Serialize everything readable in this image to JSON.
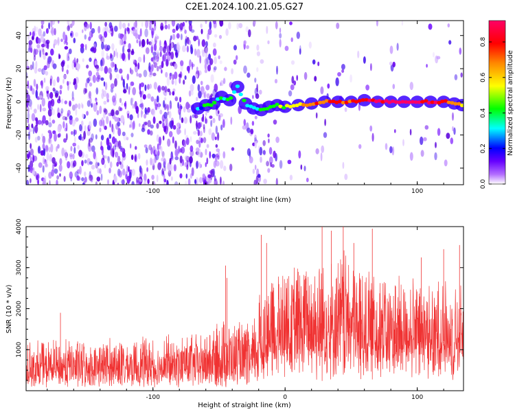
{
  "figure_title": "C2E1.2024.100.21.05.G27",
  "colors": {
    "snr_line": "#f03232",
    "frame": "#000000",
    "colormap": [
      "#ffffff",
      "#8800ff",
      "#0000ff",
      "#00ffff",
      "#00ff00",
      "#ffff00",
      "#ff8800",
      "#ff0000",
      "#ff0066"
    ]
  },
  "chart_data": [
    {
      "type": "heatmap",
      "title": "C2E1.2024.100.21.05.G27",
      "xlabel": "Height of straight line (km)",
      "ylabel": "Frequency (Hz)",
      "xlim": [
        -196,
        135
      ],
      "ylim": [
        -50,
        49
      ],
      "xticks": [
        -100,
        0,
        100
      ],
      "xtick_labels": [
        "-100",
        "",
        "100"
      ],
      "yticks": [
        -40,
        -20,
        0,
        20,
        40
      ],
      "ytick_labels": [
        "-40",
        "-20",
        "0",
        "20",
        "40"
      ],
      "colorbar": {
        "label": "Normalized spectral amplitude",
        "range": [
          0,
          0.92
        ],
        "ticks": [
          0.0,
          0.2,
          0.4,
          0.6,
          0.8
        ],
        "tick_labels": [
          "0.0",
          "0.2",
          "0.4",
          "0.6",
          "0.8"
        ]
      },
      "ridge": [
        {
          "x": -66,
          "freq": -4,
          "amp": 0.3
        },
        {
          "x": -60,
          "freq": -2,
          "amp": 0.34
        },
        {
          "x": -54,
          "freq": -1,
          "amp": 0.38
        },
        {
          "x": -48,
          "freq": 3,
          "amp": 0.4
        },
        {
          "x": -42,
          "freq": 1,
          "amp": 0.36
        },
        {
          "x": -36,
          "freq": 9,
          "amp": 0.32
        },
        {
          "x": -30,
          "freq": -1,
          "amp": 0.35
        },
        {
          "x": -24,
          "freq": -4,
          "amp": 0.33
        },
        {
          "x": -18,
          "freq": -5,
          "amp": 0.38
        },
        {
          "x": -12,
          "freq": -3,
          "amp": 0.4
        },
        {
          "x": -6,
          "freq": -2,
          "amp": 0.44
        },
        {
          "x": 0,
          "freq": -3,
          "amp": 0.55
        },
        {
          "x": 10,
          "freq": -2,
          "amp": 0.62
        },
        {
          "x": 20,
          "freq": -1,
          "amp": 0.68
        },
        {
          "x": 30,
          "freq": 0,
          "amp": 0.72
        },
        {
          "x": 40,
          "freq": 0,
          "amp": 0.74
        },
        {
          "x": 50,
          "freq": 0,
          "amp": 0.75
        },
        {
          "x": 60,
          "freq": 1,
          "amp": 0.8
        },
        {
          "x": 70,
          "freq": 0,
          "amp": 0.86
        },
        {
          "x": 80,
          "freq": 0,
          "amp": 0.9
        },
        {
          "x": 90,
          "freq": 0,
          "amp": 0.88
        },
        {
          "x": 100,
          "freq": 0,
          "amp": 0.86
        },
        {
          "x": 110,
          "freq": 0,
          "amp": 0.84
        },
        {
          "x": 120,
          "freq": 0,
          "amp": 0.82
        },
        {
          "x": 128,
          "freq": -1,
          "amp": 0.7
        },
        {
          "x": 134,
          "freq": -2,
          "amp": 0.55
        }
      ],
      "noise_density": [
        {
          "x": -196,
          "density": 1.0
        },
        {
          "x": -60,
          "density": 0.95
        },
        {
          "x": -50,
          "density": 0.8
        },
        {
          "x": -45,
          "density": 0.25
        },
        {
          "x": -30,
          "density": 0.35
        },
        {
          "x": -22,
          "density": 0.6
        },
        {
          "x": -15,
          "density": 0.25
        },
        {
          "x": 0,
          "density": 0.08
        },
        {
          "x": 135,
          "density": 0.05
        }
      ]
    },
    {
      "type": "line",
      "xlabel": "Height of straight line (km)",
      "ylabel": "SNR (10 * v/v)",
      "xlim": [
        -196,
        135
      ],
      "ylim": [
        0,
        4000
      ],
      "xticks": [
        -100,
        0,
        100
      ],
      "xtick_labels": [
        "-100",
        "0",
        "100"
      ],
      "yticks": [
        1000,
        2000,
        3000,
        4000
      ],
      "ytick_labels": [
        "1000",
        "2000",
        "3000",
        "4000"
      ],
      "series": [
        {
          "name": "SNR",
          "envelope": [
            {
              "x": -196,
              "base": 350,
              "span": 900
            },
            {
              "x": -100,
              "base": 380,
              "span": 1000
            },
            {
              "x": -60,
              "base": 400,
              "span": 1050
            },
            {
              "x": -45,
              "base": 350,
              "span": 1500
            },
            {
              "x": -25,
              "base": 400,
              "span": 1200
            },
            {
              "x": -20,
              "base": 700,
              "span": 1700
            },
            {
              "x": -10,
              "base": 900,
              "span": 2000
            },
            {
              "x": 0,
              "base": 1000,
              "span": 2200
            },
            {
              "x": 20,
              "base": 1100,
              "span": 2400
            },
            {
              "x": 40,
              "base": 1100,
              "span": 2500
            },
            {
              "x": 70,
              "base": 1000,
              "span": 2100
            },
            {
              "x": 100,
              "base": 1100,
              "span": 1800
            },
            {
              "x": 135,
              "base": 1200,
              "span": 1600
            }
          ],
          "peaks": [
            {
              "x": -170,
              "y": 1900
            },
            {
              "x": -45,
              "y": 3050
            },
            {
              "x": -44,
              "y": 2750
            },
            {
              "x": -18,
              "y": 3800
            },
            {
              "x": -14,
              "y": 3600
            },
            {
              "x": 28,
              "y": 4000
            },
            {
              "x": 35,
              "y": 3900
            },
            {
              "x": 44,
              "y": 4000
            },
            {
              "x": 52,
              "y": 3600
            },
            {
              "x": 66,
              "y": 3950
            },
            {
              "x": 103,
              "y": 3250
            },
            {
              "x": 120,
              "y": 3450
            },
            {
              "x": 132,
              "y": 3550
            }
          ]
        }
      ]
    }
  ]
}
